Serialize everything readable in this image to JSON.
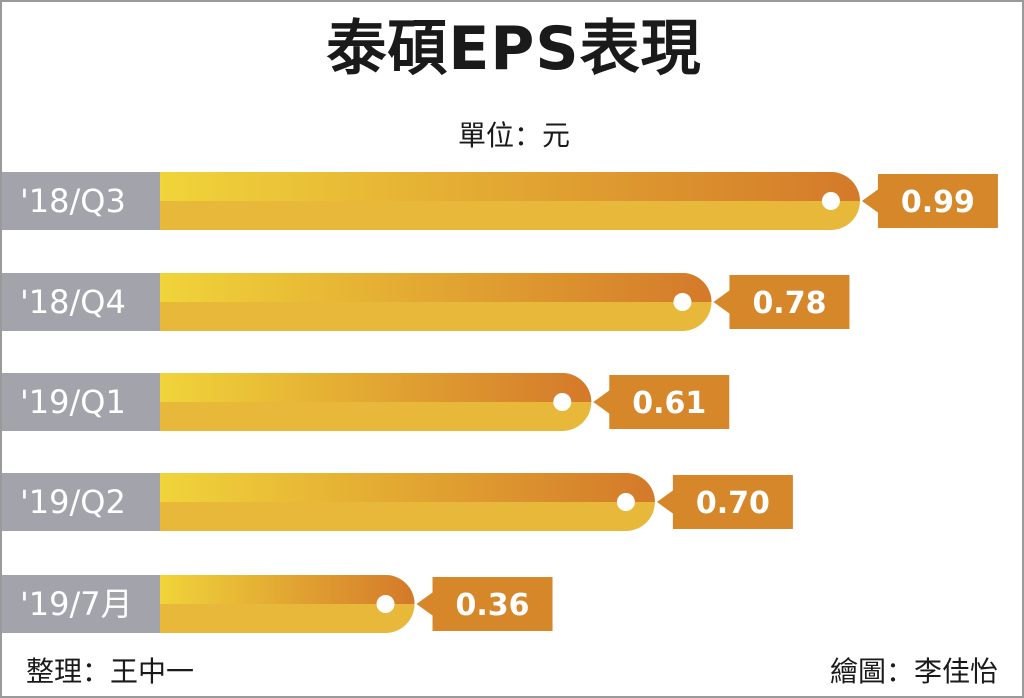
{
  "title": "泰碩EPS表現",
  "unit": "單位：元",
  "source_left": "整理：王中一",
  "source_right": "繪圖：李佳怡",
  "colors": {
    "label_bg": "#a3a3ab",
    "bar_start": "#f0d43a",
    "bar_end": "#d4792a",
    "bar_lower": "#e8b83a",
    "value_box": "#d6872a"
  },
  "chart_data": {
    "type": "bar",
    "orientation": "horizontal",
    "categories": [
      "'18/Q3",
      "'18/Q4",
      "'19/Q1",
      "'19/Q2",
      "'19/7月"
    ],
    "values": [
      0.99,
      0.78,
      0.61,
      0.7,
      0.36
    ],
    "value_labels": [
      "0.99",
      "0.78",
      "0.61",
      "0.70",
      "0.36"
    ],
    "title": "泰碩EPS表現",
    "ylabel": "單位：元",
    "grid": false,
    "legend": false
  }
}
